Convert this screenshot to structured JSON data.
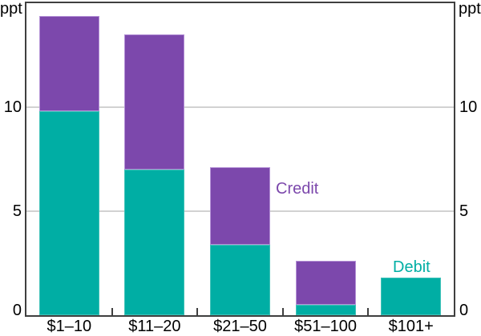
{
  "chart_data": {
    "type": "bar",
    "stacked": true,
    "title": "",
    "categories": [
      "$1–10",
      "$11–20",
      "$21–50",
      "$51–100",
      "$101+"
    ],
    "series": [
      {
        "name": "Debit",
        "color": "#00AEA4",
        "values": [
          9.8,
          7.0,
          3.4,
          0.5,
          1.8
        ]
      },
      {
        "name": "Credit",
        "color": "#7C48AC",
        "values": [
          4.6,
          6.5,
          3.7,
          2.1,
          0
        ]
      }
    ],
    "xlabel": "",
    "ylabel": "ppt",
    "y_unit_left": "ppt",
    "y_unit_right": "ppt",
    "ylim": [
      0,
      15
    ],
    "yticks": [
      0,
      5,
      10
    ],
    "gridlines": [
      5,
      10
    ],
    "grid": true,
    "legend_position": "none"
  },
  "annotations": {
    "credit": {
      "text": "Credit",
      "color": "#7C48AC"
    },
    "debit": {
      "text": "Debit",
      "color": "#00AEA4"
    }
  },
  "colors": {
    "debit_fill": "#00AEA4",
    "credit_fill": "#7C48AC",
    "axis_line": "#3f3f3f",
    "gridline": "#d2d2d2",
    "tick_text": "#000000"
  }
}
